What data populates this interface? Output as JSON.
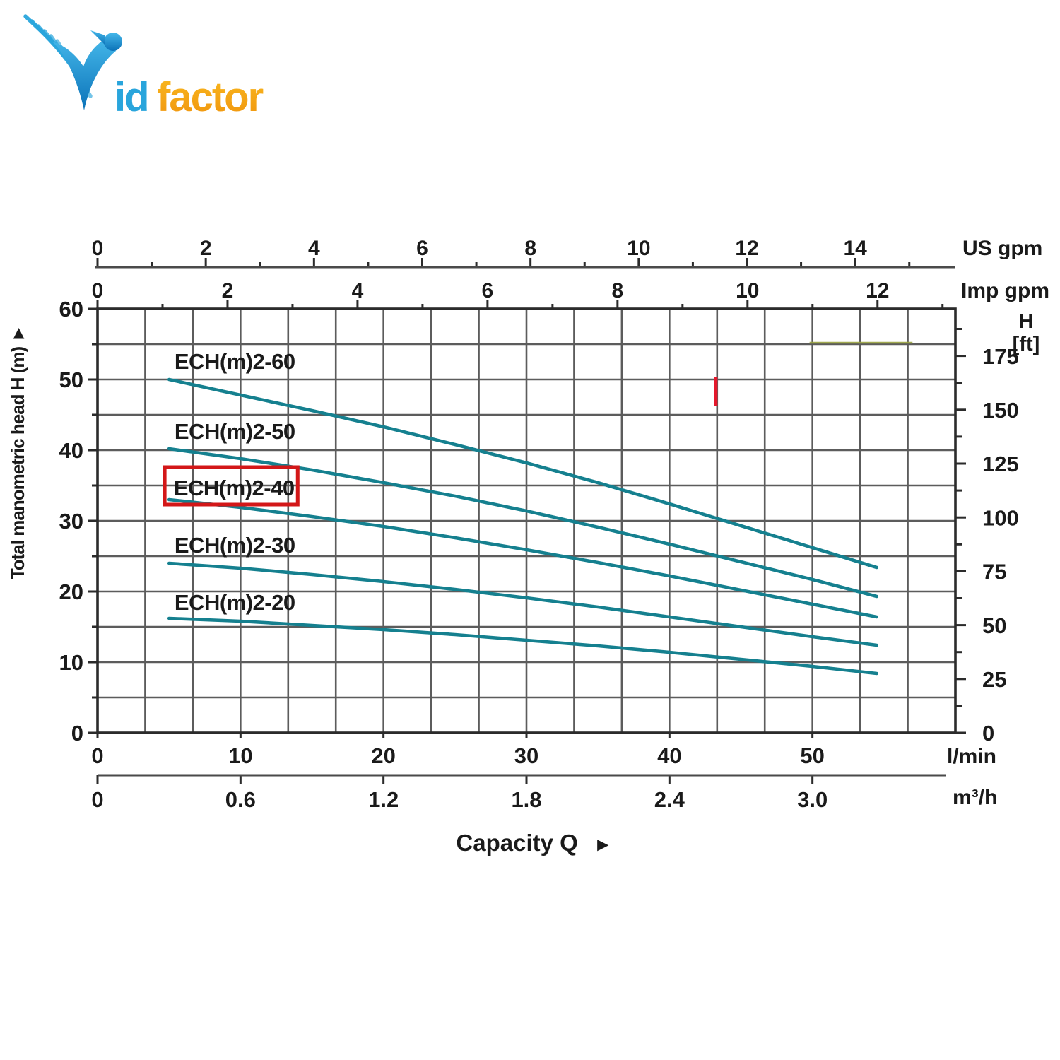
{
  "logo": {
    "text_id": "id",
    "text_factor": "factor",
    "bird_color_top": "#45b8ea",
    "bird_color_bottom": "#0b72b8",
    "id_color": "#29a5dc",
    "factor_color_top": "#f9b91f",
    "factor_color_bottom": "#f0940e"
  },
  "chart_data": {
    "type": "line",
    "xlabel": "Capacity Q",
    "x_axes": {
      "lmin": {
        "unit": "l/min",
        "major_ticks": [
          0,
          10,
          20,
          30,
          40,
          50
        ],
        "max": 60
      },
      "m3h": {
        "unit": "m³/h",
        "major_ticks": [
          "0",
          "0.6",
          "1.2",
          "1.8",
          "2.4",
          "3.0"
        ],
        "lmin_per_unit": 16.6667
      },
      "usgpm": {
        "unit": "US gpm",
        "major_ticks": [
          0,
          2,
          4,
          6,
          8,
          10,
          12,
          14
        ],
        "minor_ticks": [
          1,
          3,
          5,
          7,
          9,
          11,
          13,
          15
        ],
        "lmin_per_unit": 3.785
      },
      "impgpm": {
        "unit": "Imp gpm",
        "major_ticks": [
          0,
          2,
          4,
          6,
          8,
          10,
          12
        ],
        "minor_ticks": [
          1,
          3,
          5,
          7,
          9,
          11,
          13
        ],
        "lmin_per_unit": 4.546
      }
    },
    "y_axes": {
      "meters": {
        "title": "Total manometric head H (m)",
        "arrow": "►",
        "major_ticks": [
          0,
          10,
          20,
          30,
          40,
          50,
          60
        ],
        "minor_ticks": [
          5,
          15,
          25,
          35,
          45,
          55
        ],
        "max": 60
      },
      "feet": {
        "unit_line1": "H",
        "unit_line2": "[ft]",
        "major_ticks": [
          0,
          25,
          50,
          75,
          100,
          125,
          150,
          175
        ],
        "minor_ticks": [
          12.5,
          37.5,
          62.5,
          87.5,
          112.5,
          137.5,
          162.5,
          187.5
        ],
        "m_per_unit": 0.3048
      }
    },
    "series": [
      {
        "name": "ECH(m)2-60",
        "label_center": {
          "lmin": 9.6,
          "m": 52.6
        },
        "points": [
          [
            5,
            50.0
          ],
          [
            10,
            47.8
          ],
          [
            15,
            45.6
          ],
          [
            20,
            43.3
          ],
          [
            25,
            40.8
          ],
          [
            30,
            38.2
          ],
          [
            35,
            35.4
          ],
          [
            40,
            32.4
          ],
          [
            45,
            29.3
          ],
          [
            50,
            26.2
          ],
          [
            54.5,
            23.4
          ]
        ]
      },
      {
        "name": "ECH(m)2-50",
        "label_center": {
          "lmin": 9.6,
          "m": 42.7
        },
        "points": [
          [
            5,
            40.2
          ],
          [
            10,
            38.8
          ],
          [
            15,
            37.2
          ],
          [
            20,
            35.4
          ],
          [
            25,
            33.5
          ],
          [
            30,
            31.4
          ],
          [
            35,
            29.1
          ],
          [
            40,
            26.7
          ],
          [
            45,
            24.2
          ],
          [
            50,
            21.7
          ],
          [
            54.5,
            19.3
          ]
        ]
      },
      {
        "name": "ECH(m)2-40",
        "label_center": {
          "lmin": 9.55,
          "m": 34.7
        },
        "highlighted": true,
        "points": [
          [
            5,
            33.0
          ],
          [
            10,
            31.9
          ],
          [
            15,
            30.6
          ],
          [
            20,
            29.2
          ],
          [
            25,
            27.6
          ],
          [
            30,
            25.9
          ],
          [
            35,
            24.1
          ],
          [
            40,
            22.2
          ],
          [
            45,
            20.2
          ],
          [
            50,
            18.2
          ],
          [
            54.5,
            16.4
          ]
        ]
      },
      {
        "name": "ECH(m)2-30",
        "label_center": {
          "lmin": 9.6,
          "m": 26.6
        },
        "points": [
          [
            5,
            24.0
          ],
          [
            10,
            23.3
          ],
          [
            15,
            22.4
          ],
          [
            20,
            21.4
          ],
          [
            25,
            20.3
          ],
          [
            30,
            19.1
          ],
          [
            35,
            17.8
          ],
          [
            40,
            16.4
          ],
          [
            45,
            15.0
          ],
          [
            50,
            13.6
          ],
          [
            54.5,
            12.4
          ]
        ]
      },
      {
        "name": "ECH(m)2-20",
        "label_center": {
          "lmin": 9.6,
          "m": 18.5
        },
        "points": [
          [
            5,
            16.2
          ],
          [
            10,
            15.8
          ],
          [
            15,
            15.2
          ],
          [
            20,
            14.6
          ],
          [
            25,
            13.9
          ],
          [
            30,
            13.1
          ],
          [
            35,
            12.3
          ],
          [
            40,
            11.4
          ],
          [
            45,
            10.4
          ],
          [
            50,
            9.4
          ],
          [
            54.5,
            8.4
          ]
        ]
      }
    ],
    "annotations": {
      "highlight_box": {
        "series": "ECH(m)2-40",
        "lmin1": 4.7,
        "lmin2": 14.0,
        "m1": 32.3,
        "m2": 37.6,
        "color": "#d31718"
      },
      "red_mark": {
        "lmin": 43.25,
        "m1": 46.3,
        "m2": 50.4,
        "color": "#e5182c"
      },
      "olive_segment": {
        "lmin1": 49.8,
        "lmin2": 57.0,
        "m": 55.2,
        "color": "#98a23f"
      }
    },
    "curve_color": "#15808f",
    "grid_color": "#5c5c5c",
    "frame_color": "#2b2b2b",
    "axis_line_color": "#4a4a4a",
    "text_color": "#1a1a1a"
  }
}
